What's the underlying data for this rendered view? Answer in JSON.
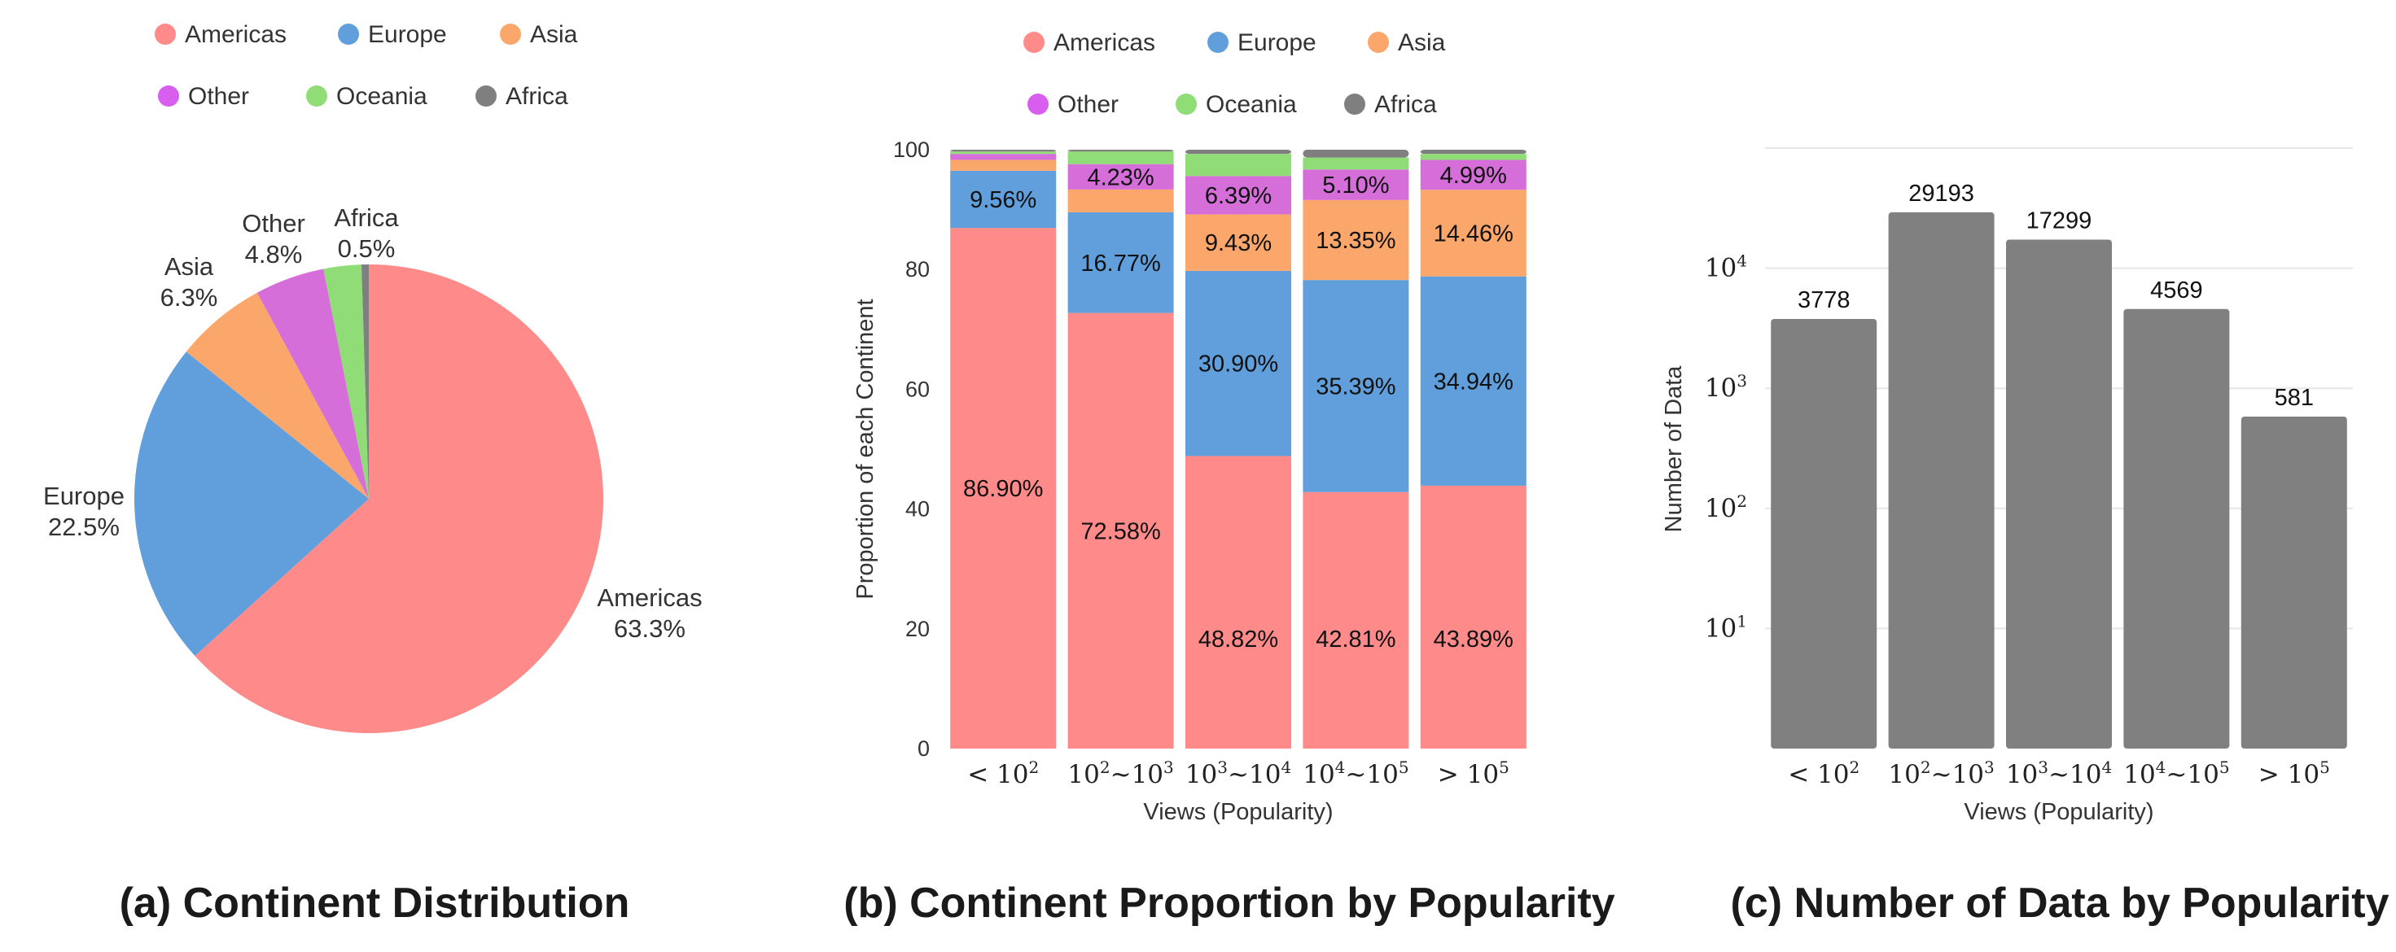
{
  "colors": {
    "Americas": "#ff8a8a",
    "Europe": "#609fdc",
    "Asia": "#fba66a",
    "Other": "#d56ed9",
    "Oceania": "#90dd78",
    "Africa": "#7f7f7f",
    "legend_Other": "#d85ef0",
    "bar_gray": "#808080",
    "grid": "#e6e6e6"
  },
  "chart_data": [
    {
      "type": "pie",
      "title": "(a) Continent Distribution",
      "legend_position": "top",
      "legend": [
        "Americas",
        "Europe",
        "Asia",
        "Other",
        "Oceania",
        "Africa"
      ],
      "slices": [
        {
          "name": "Americas",
          "value": 63.3,
          "label": "Americas",
          "pct": "63.3%"
        },
        {
          "name": "Europe",
          "value": 22.5,
          "label": "Europe",
          "pct": "22.5%"
        },
        {
          "name": "Asia",
          "value": 6.3,
          "label": "Asia",
          "pct": "6.3%"
        },
        {
          "name": "Other",
          "value": 4.8,
          "label": "Other",
          "pct": "4.8%"
        },
        {
          "name": "Oceania",
          "value": 2.6,
          "label": "",
          "pct": ""
        },
        {
          "name": "Africa",
          "value": 0.5,
          "label": "Africa",
          "pct": "0.5%"
        }
      ]
    },
    {
      "type": "bar",
      "stacked": true,
      "title": "(b) Continent Proportion by Popularity",
      "xlabel": "Views (Popularity)",
      "ylabel": "Proportion of each Continent",
      "ylim": [
        0,
        100
      ],
      "yticks": [
        0,
        20,
        40,
        60,
        80,
        100
      ],
      "grid": false,
      "legend_position": "top",
      "categories": [
        "< 10^2",
        "10^2~10^3",
        "10^3~10^4",
        "10^4~10^5",
        "> 10^5"
      ],
      "series": [
        {
          "name": "Americas",
          "values": [
            86.9,
            72.58,
            48.82,
            42.81,
            43.89
          ],
          "labels": [
            "86.90%",
            "72.58%",
            "48.82%",
            "42.81%",
            "43.89%"
          ]
        },
        {
          "name": "Europe",
          "values": [
            9.56,
            16.77,
            30.9,
            35.39,
            34.94
          ],
          "labels": [
            "9.56%",
            "16.77%",
            "30.90%",
            "35.39%",
            "34.94%"
          ]
        },
        {
          "name": "Asia",
          "values": [
            1.8,
            3.8,
            9.43,
            13.35,
            14.46
          ],
          "labels": [
            "",
            "",
            "9.43%",
            "13.35%",
            "14.46%"
          ]
        },
        {
          "name": "Other",
          "values": [
            1.0,
            4.23,
            6.39,
            5.1,
            4.99
          ],
          "labels": [
            "",
            "4.23%",
            "6.39%",
            "5.10%",
            "4.99%"
          ]
        },
        {
          "name": "Oceania",
          "values": [
            0.4,
            2.1,
            3.7,
            2.0,
            1.0
          ],
          "labels": [
            "",
            "",
            "",
            "",
            ""
          ]
        },
        {
          "name": "Africa",
          "values": [
            0.3,
            0.3,
            0.7,
            1.3,
            0.7
          ],
          "labels": [
            "",
            "",
            "",
            "",
            ""
          ]
        }
      ]
    },
    {
      "type": "bar",
      "title": "(c) Number of Data by Popularity",
      "xlabel": "Views (Popularity)",
      "ylabel": "Number of Data",
      "yscale": "log",
      "ylim": [
        1,
        100000
      ],
      "yticks": [
        10,
        100,
        1000,
        10000
      ],
      "grid": true,
      "categories": [
        "< 10^2",
        "10^2~10^3",
        "10^3~10^4",
        "10^4~10^5",
        "> 10^5"
      ],
      "values": [
        3778,
        29193,
        17299,
        4569,
        581
      ]
    }
  ]
}
